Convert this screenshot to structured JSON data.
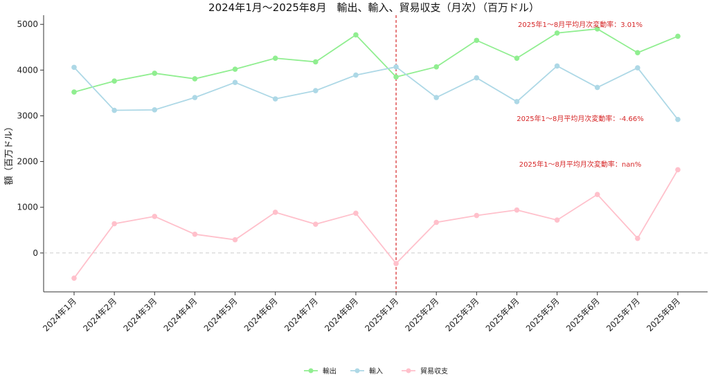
{
  "chart_data": {
    "type": "line",
    "title": "2024年1月～2025年8月　輸出、輸入、貿易収支（月次）（百万ドル）",
    "xlabel": "",
    "ylabel": "額（百万ドル）",
    "categories": [
      "2024年1月",
      "2024年2月",
      "2024年3月",
      "2024年4月",
      "2024年5月",
      "2024年6月",
      "2024年7月",
      "2024年8月",
      "2025年1月",
      "2025年2月",
      "2025年3月",
      "2025年4月",
      "2025年5月",
      "2025年6月",
      "2025年7月",
      "2025年8月"
    ],
    "ylim": [
      -850,
      5200
    ],
    "yticks": [
      0,
      1000,
      2000,
      3000,
      4000,
      5000
    ],
    "series": [
      {
        "name": "輸出",
        "color": "#90ee90",
        "values": [
          3520,
          3760,
          3930,
          3810,
          4020,
          4260,
          4180,
          4770,
          3850,
          4070,
          4650,
          4260,
          4810,
          4900,
          4380,
          4740
        ]
      },
      {
        "name": "輸入",
        "color": "#add8e6",
        "values": [
          4060,
          3120,
          3130,
          3400,
          3730,
          3370,
          3550,
          3890,
          4070,
          3400,
          3830,
          3310,
          4090,
          3620,
          4050,
          2920
        ]
      },
      {
        "name": "貿易収支",
        "color": "#ffc0cb",
        "values": [
          -550,
          640,
          800,
          410,
          290,
          890,
          630,
          870,
          -230,
          670,
          820,
          940,
          720,
          1280,
          320,
          1820
        ]
      }
    ],
    "divider_after_category": "2025年1月",
    "divider_color": "#d62728",
    "zero_line": true,
    "grid": false,
    "legend_position": "bottom-center",
    "annotations": [
      {
        "text": "2025年1～8月平均月次変動率：3.01%",
        "series": "輸出"
      },
      {
        "text": "2025年1～8月平均月次変動率：-4.66%",
        "series": "輸入"
      },
      {
        "text": "2025年1～8月平均月次変動率：nan%",
        "series": "貿易収支"
      }
    ]
  }
}
